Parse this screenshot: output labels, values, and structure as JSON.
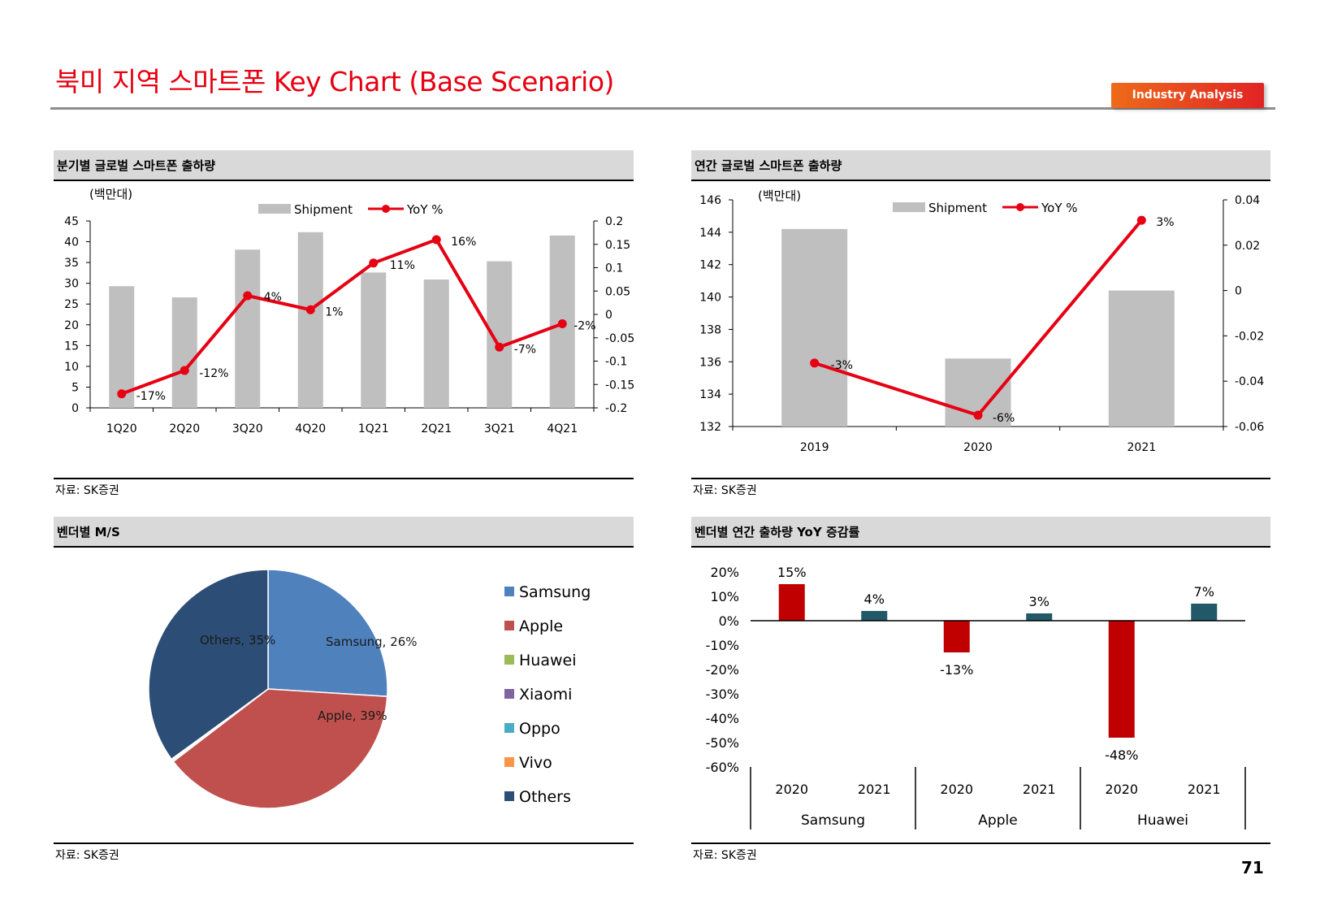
{
  "page": {
    "title": "북미 지역 스마트폰 Key Chart (Base Scenario)",
    "tag": "Industry Analysis",
    "page_number": "71",
    "colors": {
      "title": "#e60012",
      "tag": "#e8431c",
      "bar": "#bfbfbf",
      "line": "#e60012"
    }
  },
  "panels": {
    "quarterly": {
      "title": "분기별 글로벌 스마트폰 출하량",
      "source": "자료: SK증권"
    },
    "annual": {
      "title": "연간 글로벌 스마트폰 출하량",
      "source": "자료: SK증권"
    },
    "vendor_ms": {
      "title": "벤더별 M/S",
      "source": "자료: SK증권"
    },
    "vendor_yoy": {
      "title": "벤더별 연간 출하량 YoY 증감률",
      "source": "자료: SK증권"
    }
  },
  "chart_data": [
    {
      "type": "bar",
      "unit_label": "(백만대)",
      "categories": [
        "1Q20",
        "2Q20",
        "3Q20",
        "4Q20",
        "1Q21",
        "2Q21",
        "3Q21",
        "4Q21"
      ],
      "series": [
        {
          "name": "Shipment",
          "axis": "left",
          "kind": "bar",
          "color": "#bfbfbf",
          "values": [
            29.3,
            26.6,
            38.1,
            42.3,
            32.6,
            30.9,
            35.3,
            41.5
          ]
        },
        {
          "name": "YoY %",
          "axis": "right",
          "kind": "line",
          "color": "#e60012",
          "values": [
            -0.17,
            -0.12,
            0.04,
            0.01,
            0.11,
            0.16,
            -0.07,
            -0.02
          ],
          "labels": [
            "-17%",
            "-12%",
            "4%",
            "1%",
            "11%",
            "16%",
            "-7%",
            "-2%"
          ]
        }
      ],
      "ylim": [
        0,
        45
      ],
      "yticks": [
        "0",
        "5",
        "10",
        "15",
        "20",
        "25",
        "30",
        "35",
        "40",
        "45"
      ],
      "y2lim": [
        -0.2,
        0.2
      ],
      "y2ticks": [
        "-0.2",
        "-0.15",
        "-0.1",
        "-0.05",
        "0",
        "0.05",
        "0.1",
        "0.15",
        "0.2"
      ],
      "legend": "top-center"
    },
    {
      "type": "bar",
      "unit_label": "(백만대)",
      "categories": [
        "2019",
        "2020",
        "2021"
      ],
      "series": [
        {
          "name": "Shipment",
          "axis": "left",
          "kind": "bar",
          "color": "#bfbfbf",
          "values": [
            144.2,
            136.2,
            140.4
          ]
        },
        {
          "name": "YoY %",
          "axis": "right",
          "kind": "line",
          "color": "#e60012",
          "values": [
            -0.032,
            -0.055,
            0.031
          ],
          "labels": [
            "-3%",
            "-6%",
            "3%"
          ]
        }
      ],
      "ylim": [
        132,
        146
      ],
      "yticks": [
        "132",
        "134",
        "136",
        "138",
        "140",
        "142",
        "144",
        "146"
      ],
      "y2lim": [
        -0.06,
        0.04
      ],
      "y2ticks": [
        "-0.06",
        "-0.04",
        "-0.02",
        "0",
        "0.02",
        "0.04"
      ],
      "legend": "top-center"
    },
    {
      "type": "pie",
      "slices": [
        {
          "name": "Samsung",
          "value": 26,
          "label": "Samsung, 26%",
          "color": "#4f81bd"
        },
        {
          "name": "Apple",
          "value": 38.6,
          "label": "Apple, 39%",
          "color": "#c0504d"
        },
        {
          "name": "Huawei",
          "value": 0.2,
          "label": "",
          "color": "#9bbb59"
        },
        {
          "name": "Xiaomi",
          "value": 0.1,
          "label": "",
          "color": "#8064a2"
        },
        {
          "name": "Oppo",
          "value": 0.05,
          "label": "",
          "color": "#4bacc6"
        },
        {
          "name": "Vivo",
          "value": 0.05,
          "label": "",
          "color": "#f79646"
        },
        {
          "name": "Others",
          "value": 35,
          "label": "Others, 35%",
          "color": "#2c4d75"
        }
      ],
      "legend": [
        "Samsung",
        "Apple",
        "Huawei",
        "Xiaomi",
        "Oppo",
        "Vivo",
        "Others"
      ],
      "legend_placement": "right"
    },
    {
      "type": "bar",
      "groups": [
        "Samsung",
        "Apple",
        "Huawei"
      ],
      "categories": [
        "2020",
        "2021",
        "2020",
        "2021",
        "2020",
        "2021"
      ],
      "values": [
        0.15,
        0.04,
        -0.13,
        0.03,
        -0.48,
        0.07
      ],
      "labels": [
        "15%",
        "4%",
        "-13%",
        "3%",
        "-48%",
        "7%"
      ],
      "colors": [
        "#c00000",
        "#215968",
        "#c00000",
        "#215968",
        "#c00000",
        "#215968"
      ],
      "ylim": [
        -0.6,
        0.2
      ],
      "yticks": [
        "-60%",
        "-50%",
        "-40%",
        "-30%",
        "-20%",
        "-10%",
        "0%",
        "10%",
        "20%"
      ]
    }
  ]
}
